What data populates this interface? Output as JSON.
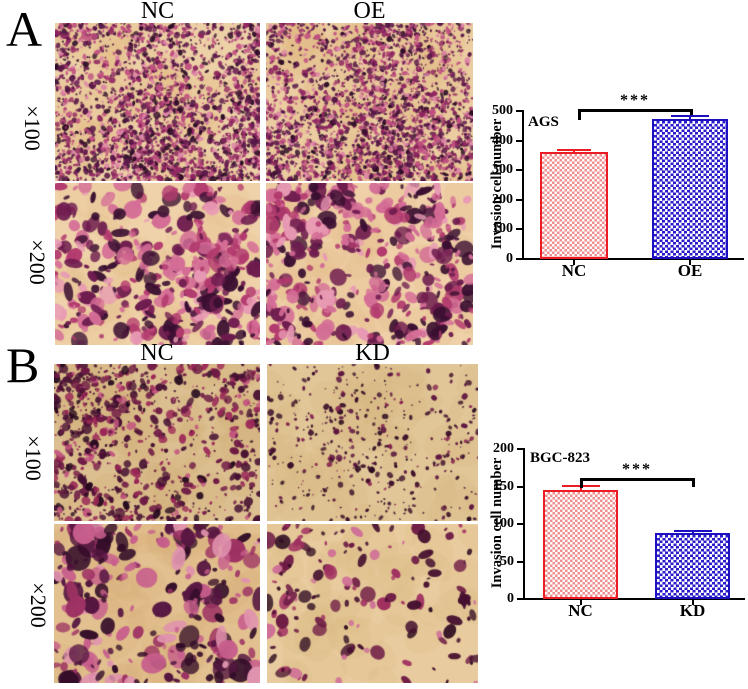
{
  "figure": {
    "panels": [
      {
        "letter": "A",
        "column_headers": [
          "NC",
          "OE"
        ],
        "row_labels": [
          "×100",
          "×200"
        ],
        "micrograph_names": [
          "A-NC-x100",
          "A-OE-x100",
          "A-NC-x200",
          "A-OE-x200"
        ]
      },
      {
        "letter": "B",
        "column_headers": [
          "NC",
          "KD"
        ],
        "row_labels": [
          "×100",
          "×200"
        ],
        "micrograph_names": [
          "B-NC-x100",
          "B-KD-x100",
          "B-NC-x200",
          "B-KD-x200"
        ]
      }
    ]
  },
  "chart_data": [
    {
      "type": "bar",
      "title": "AGS",
      "xlabel": "",
      "ylabel": "Invasion cell number",
      "categories": [
        "NC",
        "OE"
      ],
      "values": [
        357,
        470
      ],
      "errors": [
        12,
        14
      ],
      "ylim": [
        0,
        500
      ],
      "yticks": [
        0,
        100,
        200,
        300,
        400,
        500
      ],
      "significance": "***",
      "significance_between": [
        "NC",
        "OE"
      ],
      "grid": "off",
      "legend": "none",
      "pattern": "checkerboard",
      "bar_edge_colors": [
        "#ec1c24",
        "#1c10c0"
      ],
      "bar_face_colors": [
        "#f08f8f",
        "#2a1cc8"
      ]
    },
    {
      "type": "bar",
      "title": "BGC-823",
      "xlabel": "",
      "ylabel": "Invasion cell number",
      "categories": [
        "NC",
        "KD"
      ],
      "values": [
        144,
        87
      ],
      "errors": [
        7,
        4
      ],
      "ylim": [
        0,
        200
      ],
      "yticks": [
        0,
        50,
        100,
        150,
        200
      ],
      "significance": "***",
      "significance_between": [
        "NC",
        "KD"
      ],
      "grid": "off",
      "legend": "none",
      "pattern": "checkerboard",
      "bar_edge_colors": [
        "#ec1c24",
        "#1c10c0"
      ],
      "bar_face_colors": [
        "#f08f8f",
        "#2a1cc8"
      ]
    }
  ]
}
